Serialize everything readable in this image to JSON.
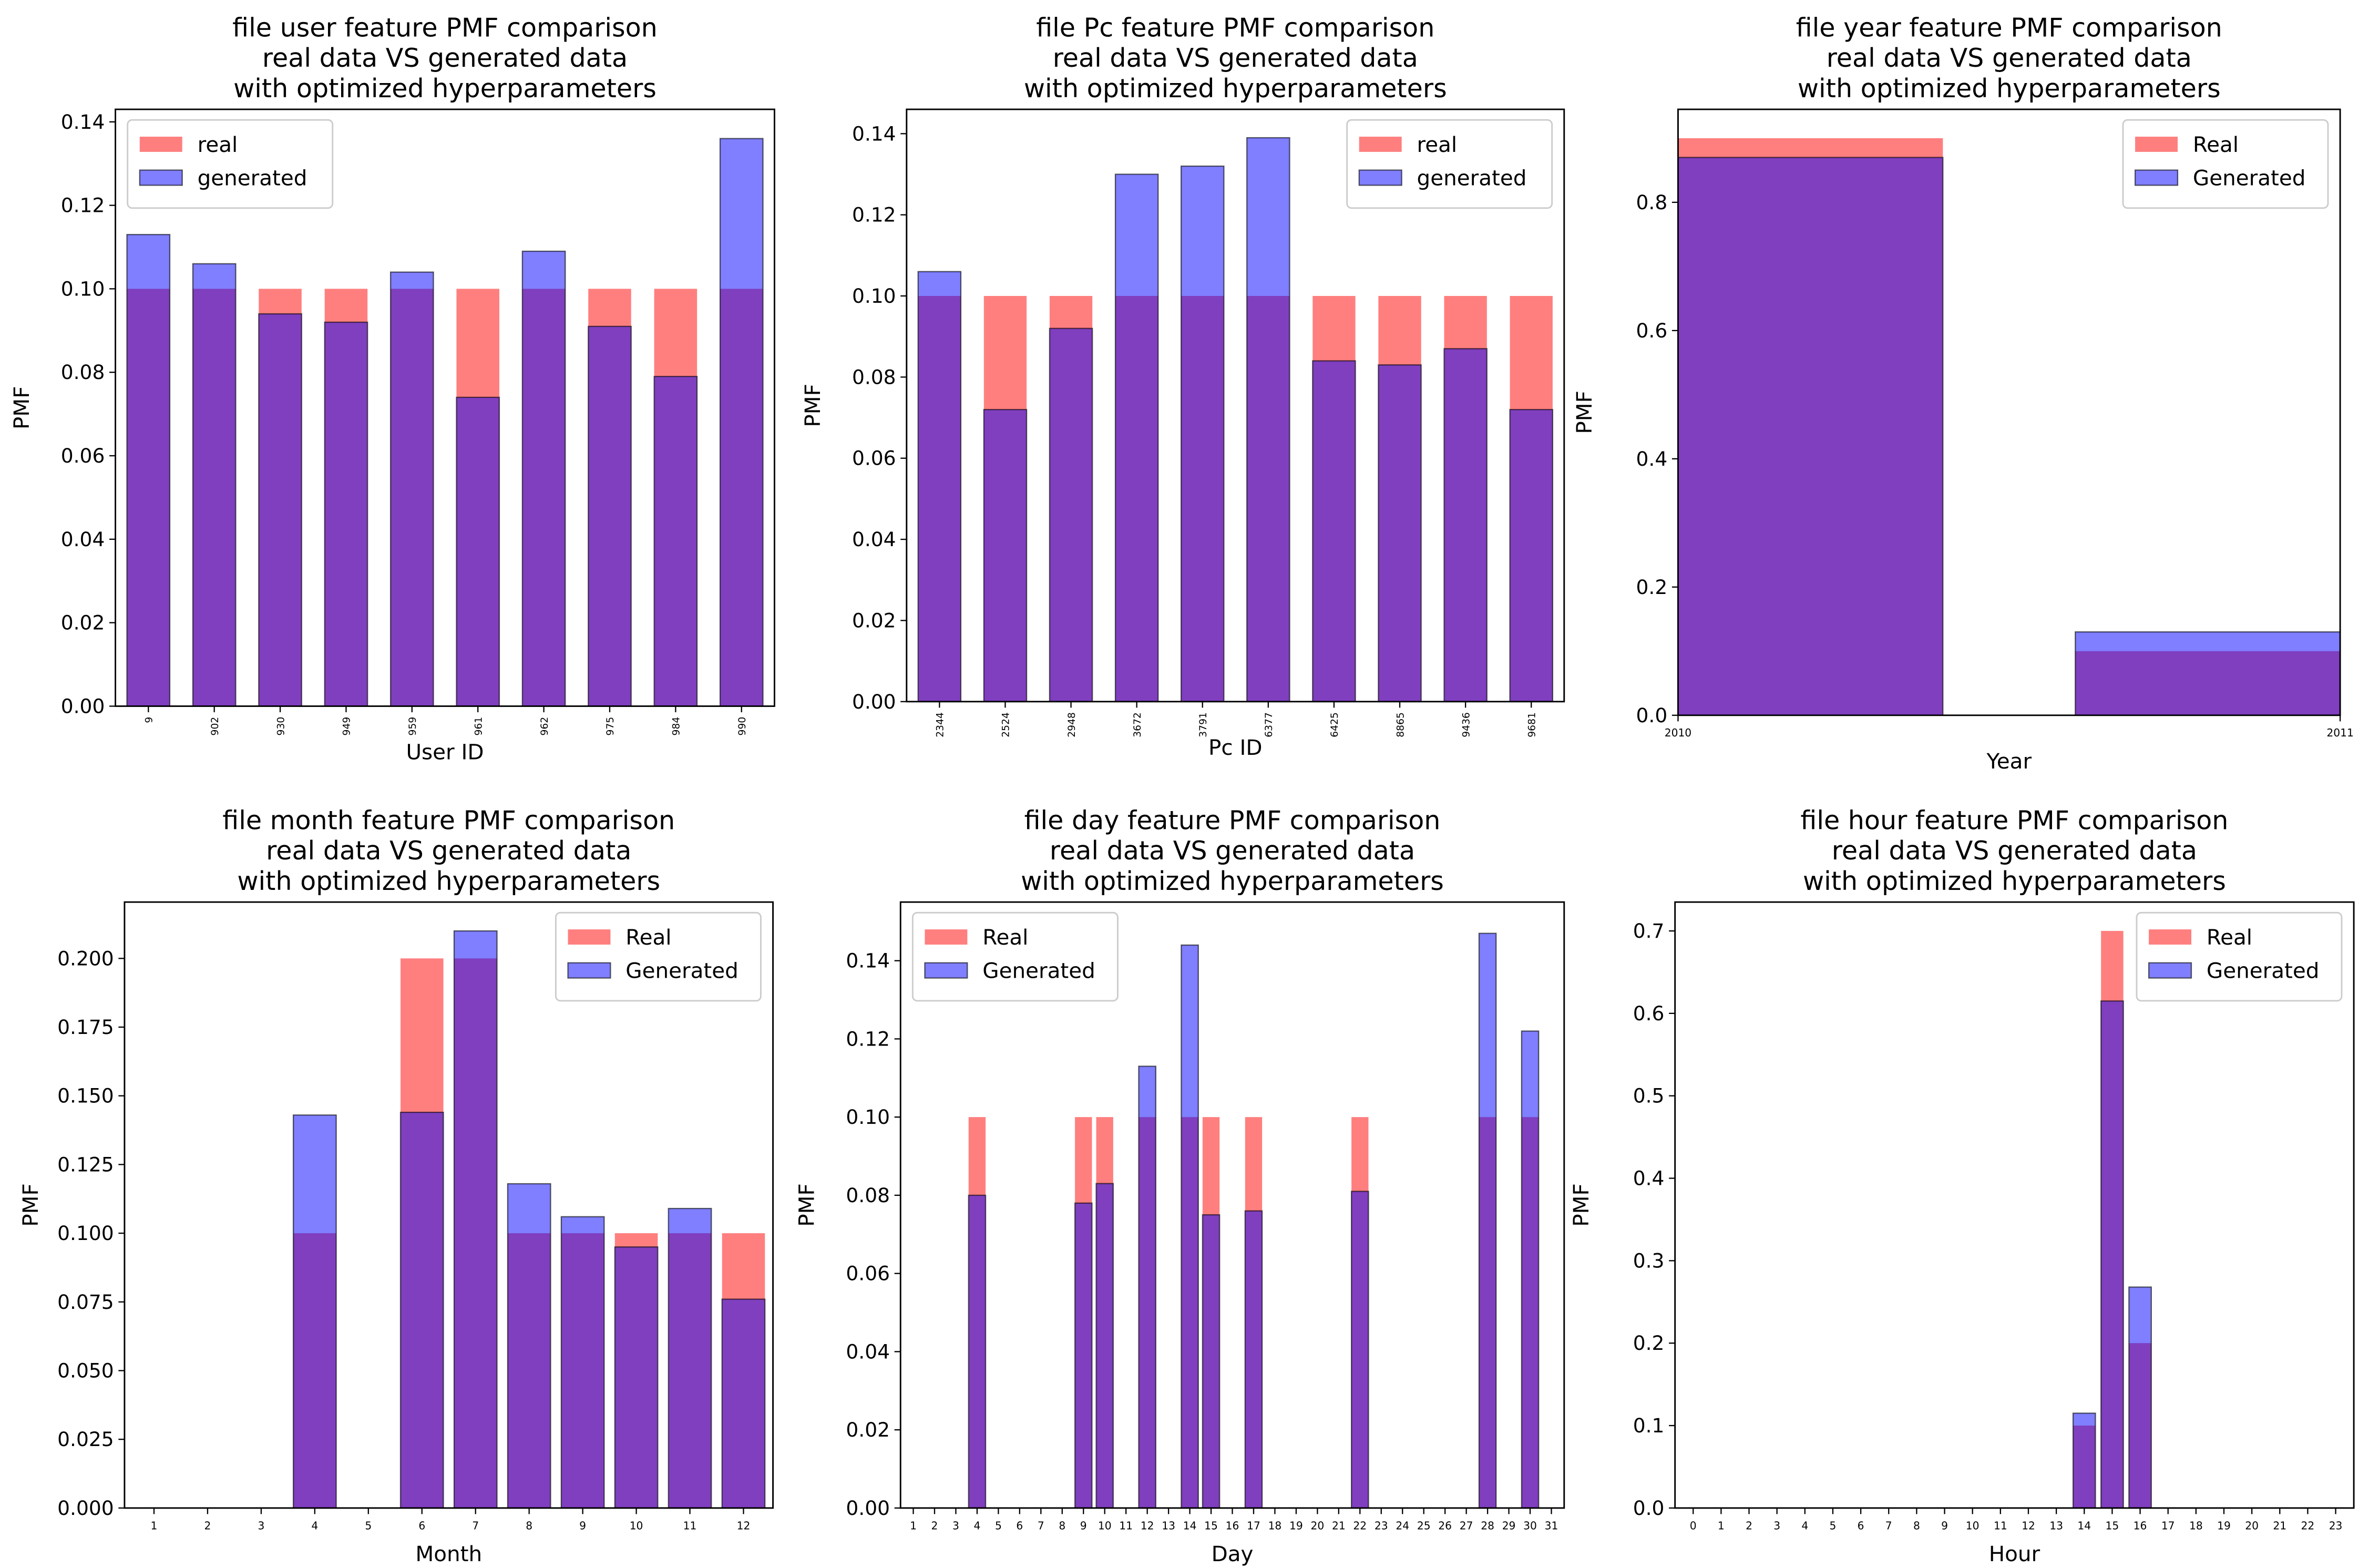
{
  "chart_data": [
    {
      "type": "bar",
      "title": [
        "file user feature PMF comparison",
        "real data VS generated data",
        "with optimized hyperparameters"
      ],
      "xlabel": "User ID",
      "ylabel": "PMF",
      "categories": [
        "9",
        "902",
        "930",
        "949",
        "959",
        "961",
        "962",
        "975",
        "984",
        "990"
      ],
      "series": [
        {
          "name": "real",
          "color": "#ff0000",
          "values": [
            0.1,
            0.1,
            0.1,
            0.1,
            0.1,
            0.1,
            0.1,
            0.1,
            0.1,
            0.1
          ]
        },
        {
          "name": "generated",
          "color": "#0000ff",
          "values": [
            0.113,
            0.106,
            0.094,
            0.092,
            0.104,
            0.074,
            0.109,
            0.091,
            0.079,
            0.136
          ]
        }
      ],
      "ylim": [
        0,
        0.143
      ],
      "yticks": [
        {
          "value": 0,
          "label": "0.00"
        },
        {
          "value": 0.02,
          "label": "0.02"
        },
        {
          "value": 0.04,
          "label": "0.04"
        },
        {
          "value": 0.06,
          "label": "0.06"
        },
        {
          "value": 0.08,
          "label": "0.08"
        },
        {
          "value": 0.1,
          "label": "0.10"
        },
        {
          "value": 0.12,
          "label": "0.12"
        },
        {
          "value": 0.14,
          "label": "0.14"
        }
      ],
      "legend": "upper left"
    },
    {
      "type": "bar",
      "title": [
        "file Pc feature PMF comparison",
        "real data VS generated data",
        "with optimized hyperparameters"
      ],
      "xlabel": "Pc ID",
      "ylabel": "PMF",
      "categories": [
        "2344",
        "2524",
        "2948",
        "3672",
        "3791",
        "6377",
        "6425",
        "8865",
        "9436",
        "9681"
      ],
      "series": [
        {
          "name": "real",
          "color": "#ff0000",
          "values": [
            0.1,
            0.1,
            0.1,
            0.1,
            0.1,
            0.1,
            0.1,
            0.1,
            0.1,
            0.1
          ]
        },
        {
          "name": "generated",
          "color": "#0000ff",
          "values": [
            0.106,
            0.072,
            0.092,
            0.13,
            0.132,
            0.139,
            0.084,
            0.083,
            0.087,
            0.072
          ]
        }
      ],
      "ylim": [
        0,
        0.146
      ],
      "yticks": [
        {
          "value": 0,
          "label": "0.00"
        },
        {
          "value": 0.02,
          "label": "0.02"
        },
        {
          "value": 0.04,
          "label": "0.04"
        },
        {
          "value": 0.06,
          "label": "0.06"
        },
        {
          "value": 0.08,
          "label": "0.08"
        },
        {
          "value": 0.1,
          "label": "0.10"
        },
        {
          "value": 0.12,
          "label": "0.12"
        },
        {
          "value": 0.14,
          "label": "0.14"
        }
      ],
      "legend": "upper right"
    },
    {
      "type": "histogram",
      "title": [
        "file year feature PMF comparison",
        "real data VS generated data",
        "with optimized hyperparameters"
      ],
      "xlabel": "Year",
      "ylabel": "PMF",
      "bins": [
        2010,
        2010.4,
        2010.6,
        2011
      ],
      "series": [
        {
          "name": "Real",
          "color": "#ff0000",
          "values": [
            0.9,
            0,
            0.1
          ]
        },
        {
          "name": "Generated",
          "color": "#0000ff",
          "values": [
            0.87,
            0,
            0.13
          ]
        }
      ],
      "xlim": [
        2010,
        2011
      ],
      "xticks": [
        2010,
        2011
      ],
      "ylim": [
        0,
        0.945
      ],
      "yticks": [
        {
          "value": 0,
          "label": "0.0"
        },
        {
          "value": 0.2,
          "label": "0.2"
        },
        {
          "value": 0.4,
          "label": "0.4"
        },
        {
          "value": 0.6,
          "label": "0.6"
        },
        {
          "value": 0.8,
          "label": "0.8"
        }
      ],
      "legend": "upper right"
    },
    {
      "type": "bar",
      "title": [
        "file month feature PMF comparison",
        "real data VS generated data",
        "with optimized hyperparameters"
      ],
      "xlabel": "Month",
      "ylabel": "PMF",
      "x": [
        4,
        6,
        7,
        8,
        9,
        10,
        11,
        12
      ],
      "series": [
        {
          "name": "Real",
          "color": "#ff0000",
          "values": [
            0.1,
            0.2,
            0.2,
            0.1,
            0.1,
            0.1,
            0.1,
            0.1
          ]
        },
        {
          "name": "Generated",
          "color": "#0000ff",
          "values": [
            0.143,
            0.144,
            0.21,
            0.118,
            0.106,
            0.095,
            0.109,
            0.076
          ]
        }
      ],
      "xlim": [
        0.45,
        12.55
      ],
      "xticks": [
        1,
        2,
        3,
        4,
        5,
        6,
        7,
        8,
        9,
        10,
        11,
        12
      ],
      "ylim": [
        0,
        0.2205
      ],
      "yticks": [
        {
          "value": 0,
          "label": "0.000"
        },
        {
          "value": 0.025,
          "label": "0.025"
        },
        {
          "value": 0.05,
          "label": "0.050"
        },
        {
          "value": 0.075,
          "label": "0.075"
        },
        {
          "value": 0.1,
          "label": "0.100"
        },
        {
          "value": 0.125,
          "label": "0.125"
        },
        {
          "value": 0.15,
          "label": "0.150"
        },
        {
          "value": 0.175,
          "label": "0.175"
        },
        {
          "value": 0.2,
          "label": "0.200"
        }
      ],
      "legend": "upper right"
    },
    {
      "type": "bar",
      "title": [
        "file day feature PMF comparison",
        "real data VS generated data",
        "with optimized hyperparameters"
      ],
      "xlabel": "Day",
      "ylabel": "PMF",
      "x": [
        4,
        9,
        10,
        12,
        14,
        15,
        17,
        22,
        28,
        30
      ],
      "series": [
        {
          "name": "Real",
          "color": "#ff0000",
          "values": [
            0.1,
            0.1,
            0.1,
            0.1,
            0.1,
            0.1,
            0.1,
            0.1,
            0.1,
            0.1
          ]
        },
        {
          "name": "Generated",
          "color": "#0000ff",
          "values": [
            0.08,
            0.078,
            0.083,
            0.113,
            0.144,
            0.075,
            0.076,
            0.081,
            0.147,
            0.122
          ]
        }
      ],
      "xlim": [
        0.4,
        31.6
      ],
      "xticks": [
        1,
        2,
        3,
        4,
        5,
        6,
        7,
        8,
        9,
        10,
        11,
        12,
        13,
        14,
        15,
        16,
        17,
        18,
        19,
        20,
        21,
        22,
        23,
        24,
        25,
        26,
        27,
        28,
        29,
        30,
        31
      ],
      "ylim": [
        0,
        0.155
      ],
      "yticks": [
        {
          "value": 0,
          "label": "0.00"
        },
        {
          "value": 0.02,
          "label": "0.02"
        },
        {
          "value": 0.04,
          "label": "0.04"
        },
        {
          "value": 0.06,
          "label": "0.06"
        },
        {
          "value": 0.08,
          "label": "0.08"
        },
        {
          "value": 0.1,
          "label": "0.10"
        },
        {
          "value": 0.12,
          "label": "0.12"
        },
        {
          "value": 0.14,
          "label": "0.14"
        }
      ],
      "legend": "upper left"
    },
    {
      "type": "bar",
      "title": [
        "file hour feature PMF comparison",
        "real data VS generated data",
        "with optimized hyperparameters"
      ],
      "xlabel": "Hour",
      "ylabel": "PMF",
      "x": [
        14,
        15,
        16
      ],
      "series": [
        {
          "name": "Real",
          "color": "#ff0000",
          "values": [
            0.1,
            0.7,
            0.2
          ]
        },
        {
          "name": "Generated",
          "color": "#0000ff",
          "values": [
            0.115,
            0.615,
            0.268
          ]
        }
      ],
      "xlim": [
        -0.65,
        23.65
      ],
      "xticks": [
        0,
        1,
        2,
        3,
        4,
        5,
        6,
        7,
        8,
        9,
        10,
        11,
        12,
        13,
        14,
        15,
        16,
        17,
        18,
        19,
        20,
        21,
        22,
        23
      ],
      "ylim": [
        0,
        0.735
      ],
      "yticks": [
        {
          "value": 0,
          "label": "0.0"
        },
        {
          "value": 0.1,
          "label": "0.1"
        },
        {
          "value": 0.2,
          "label": "0.2"
        },
        {
          "value": 0.3,
          "label": "0.3"
        },
        {
          "value": 0.4,
          "label": "0.4"
        },
        {
          "value": 0.5,
          "label": "0.5"
        },
        {
          "value": 0.6,
          "label": "0.6"
        },
        {
          "value": 0.7,
          "label": "0.7"
        }
      ],
      "legend": "upper right"
    }
  ]
}
